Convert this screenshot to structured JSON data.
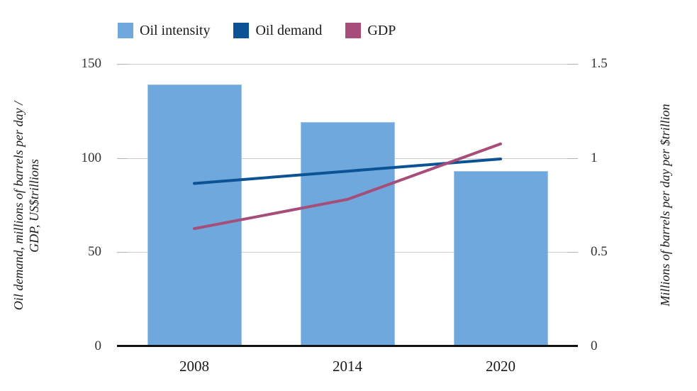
{
  "chart_data": {
    "type": "combo",
    "categories": [
      "2008",
      "2014",
      "2020"
    ],
    "series": [
      {
        "name": "Oil intensity",
        "type": "bar",
        "axis": "right",
        "color": "#6fa8dc",
        "values": [
          1.39,
          1.19,
          0.93
        ]
      },
      {
        "name": "Oil demand",
        "type": "line",
        "axis": "left",
        "color": "#0b5394",
        "values": [
          86.5,
          93,
          99.5
        ]
      },
      {
        "name": "GDP",
        "type": "line",
        "axis": "left",
        "color": "#a64d79",
        "values": [
          62.5,
          78,
          107.5
        ]
      }
    ],
    "left_axis": {
      "label_lines": [
        "Oil demand, millions of barrels per day /",
        "GDP, US$trillions"
      ],
      "ticks_top_to_bottom": [
        "150",
        "100",
        "50",
        "0"
      ],
      "range": [
        0,
        150
      ]
    },
    "right_axis": {
      "label": "Millions of barrels per day per $trillion",
      "ticks_top_to_bottom": [
        "1.5",
        "1",
        "0.5",
        "0"
      ],
      "range": [
        0,
        1.5
      ]
    },
    "grid": true,
    "legend_position": "top",
    "colors": {
      "gridline": "#cccccc",
      "axis_line": "#111111",
      "tick_text": "#333333"
    }
  }
}
